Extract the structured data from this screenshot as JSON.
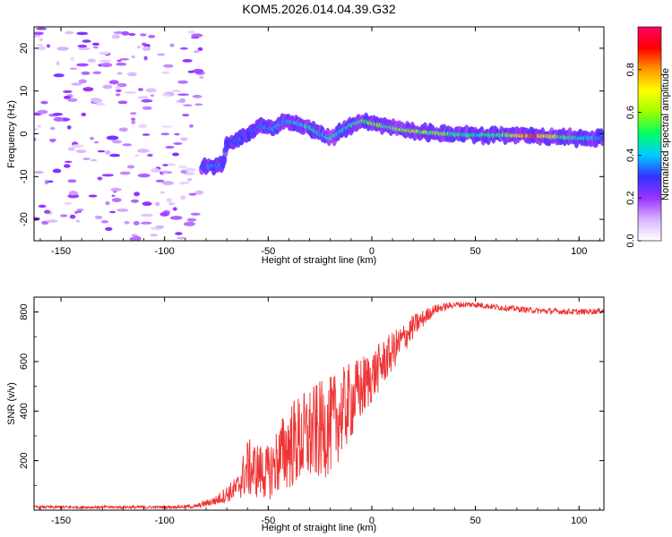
{
  "title": "KOM5.2026.014.04.39.G32",
  "chart_data": [
    {
      "type": "heatmap",
      "name": "spectrogram",
      "xlabel": "Height of straight line (km)",
      "ylabel": "Frequency (Hz)",
      "xlim": [
        -163,
        112
      ],
      "ylim": [
        -25,
        25
      ],
      "x_ticks": [
        -150,
        -100,
        -50,
        0,
        50,
        100
      ],
      "y_ticks": [
        -20,
        -10,
        0,
        10,
        20
      ],
      "colorbar": {
        "label": "Normalized spectral amplitude",
        "range": [
          0,
          1
        ],
        "ticks": [
          0.0,
          0.2,
          0.4,
          0.6,
          0.8
        ],
        "colors": [
          "#ffffff",
          "#d9b3ff",
          "#9933ff",
          "#3333ff",
          "#00ccff",
          "#00ff66",
          "#99ff00",
          "#ffff00",
          "#ff9900",
          "#ff0000",
          "#ff0066"
        ]
      },
      "noise_region_x": [
        -163,
        -82
      ],
      "signal_track": [
        {
          "x": -82,
          "freq": -7.8,
          "amp": 0.35
        },
        {
          "x": -78,
          "freq": -7.6,
          "amp": 0.4
        },
        {
          "x": -72,
          "freq": -7.3,
          "amp": 0.35
        },
        {
          "x": -70,
          "freq": -2.0,
          "amp": 0.3
        },
        {
          "x": -64,
          "freq": -1.5,
          "amp": 0.35
        },
        {
          "x": -58,
          "freq": 0.5,
          "amp": 0.35
        },
        {
          "x": -54,
          "freq": 1.8,
          "amp": 0.35
        },
        {
          "x": -48,
          "freq": 1.0,
          "amp": 0.4
        },
        {
          "x": -42,
          "freq": 3.0,
          "amp": 0.4
        },
        {
          "x": -36,
          "freq": 2.5,
          "amp": 0.45
        },
        {
          "x": -30,
          "freq": 1.5,
          "amp": 0.5
        },
        {
          "x": -25,
          "freq": 0.0,
          "amp": 0.45
        },
        {
          "x": -20,
          "freq": -1.2,
          "amp": 0.5
        },
        {
          "x": -15,
          "freq": 0.5,
          "amp": 0.45
        },
        {
          "x": -10,
          "freq": 2.0,
          "amp": 0.5
        },
        {
          "x": -4,
          "freq": 3.0,
          "amp": 0.55
        },
        {
          "x": 2,
          "freq": 2.2,
          "amp": 0.6
        },
        {
          "x": 8,
          "freq": 1.6,
          "amp": 0.55
        },
        {
          "x": 14,
          "freq": 1.0,
          "amp": 0.6
        },
        {
          "x": 22,
          "freq": 0.5,
          "amp": 0.65
        },
        {
          "x": 35,
          "freq": 0.0,
          "amp": 0.55
        },
        {
          "x": 50,
          "freq": -0.3,
          "amp": 0.5
        },
        {
          "x": 65,
          "freq": -0.3,
          "amp": 0.55
        },
        {
          "x": 78,
          "freq": -0.5,
          "amp": 0.95
        },
        {
          "x": 90,
          "freq": -0.7,
          "amp": 0.6
        },
        {
          "x": 100,
          "freq": -1.0,
          "amp": 0.45
        },
        {
          "x": 112,
          "freq": -1.0,
          "amp": 0.4
        }
      ]
    },
    {
      "type": "line",
      "name": "snr",
      "xlabel": "Height of straight line (km)",
      "ylabel": "SNR (v/v)",
      "xlim": [
        -163,
        112
      ],
      "ylim": [
        0,
        860
      ],
      "x_ticks": [
        -150,
        -100,
        -50,
        0,
        50,
        100
      ],
      "y_ticks": [
        200,
        400,
        600,
        800
      ],
      "color": "#ee3333",
      "envelope": [
        {
          "x": -163,
          "mean": 12,
          "noise": 6
        },
        {
          "x": -100,
          "mean": 12,
          "noise": 6
        },
        {
          "x": -85,
          "mean": 15,
          "noise": 8
        },
        {
          "x": -75,
          "mean": 40,
          "noise": 20
        },
        {
          "x": -65,
          "mean": 90,
          "noise": 50
        },
        {
          "x": -60,
          "mean": 170,
          "noise": 120
        },
        {
          "x": -50,
          "mean": 150,
          "noise": 110
        },
        {
          "x": -40,
          "mean": 260,
          "noise": 180
        },
        {
          "x": -30,
          "mean": 300,
          "noise": 200
        },
        {
          "x": -20,
          "mean": 340,
          "noise": 200
        },
        {
          "x": -10,
          "mean": 440,
          "noise": 160
        },
        {
          "x": 0,
          "mean": 540,
          "noise": 110
        },
        {
          "x": 10,
          "mean": 640,
          "noise": 80
        },
        {
          "x": 20,
          "mean": 740,
          "noise": 50
        },
        {
          "x": 30,
          "mean": 810,
          "noise": 20
        },
        {
          "x": 40,
          "mean": 830,
          "noise": 12
        },
        {
          "x": 50,
          "mean": 830,
          "noise": 12
        },
        {
          "x": 60,
          "mean": 820,
          "noise": 12
        },
        {
          "x": 80,
          "mean": 805,
          "noise": 12
        },
        {
          "x": 100,
          "mean": 800,
          "noise": 12
        },
        {
          "x": 112,
          "mean": 805,
          "noise": 12
        }
      ]
    }
  ]
}
